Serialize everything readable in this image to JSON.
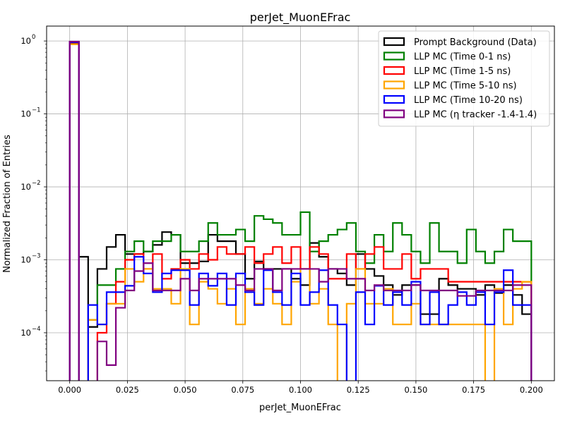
{
  "chart_data": {
    "type": "step-histogram",
    "title": "perJet_MuonEFrac",
    "xlabel": "perJet_MuonEFrac",
    "ylabel": "Normalized Fraction of Entries",
    "xlim": [
      -0.01,
      0.21
    ],
    "ylim": [
      2.2e-05,
      1.6
    ],
    "yscale": "log",
    "grid": true,
    "legend_position": "top-right",
    "x_ticks": [
      0.0,
      0.025,
      0.05,
      0.075,
      0.1,
      0.125,
      0.15,
      0.175,
      0.2
    ],
    "x_tick_labels": [
      "0.000",
      "0.025",
      "0.050",
      "0.075",
      "0.100",
      "0.125",
      "0.150",
      "0.175",
      "0.200"
    ],
    "y_ticks": [
      0.0001,
      0.001,
      0.01,
      0.1,
      1
    ],
    "y_tick_labels": [
      {
        "base": "10",
        "exp": "−4"
      },
      {
        "base": "10",
        "exp": "−3"
      },
      {
        "base": "10",
        "exp": "−2"
      },
      {
        "base": "10",
        "exp": "−1"
      },
      {
        "base": "10",
        "exp": "0"
      }
    ],
    "bins": {
      "start": 0.0,
      "width": 0.004,
      "count": 50
    },
    "series": [
      {
        "name": "Prompt Background (Data)",
        "color": "#000000",
        "values": [
          0.97,
          0.0011,
          0.00012,
          0.00075,
          0.0015,
          0.0022,
          0.0012,
          0.0012,
          0.0013,
          0.0016,
          0.0024,
          0.0022,
          0.0009,
          0.0009,
          0.00095,
          0.0022,
          0.0018,
          0.0018,
          0.0012,
          0.00055,
          0.00095,
          0.00075,
          0.00075,
          0.00075,
          0.00055,
          0.00045,
          0.0017,
          0.0011,
          0.00075,
          0.00065,
          0.00045,
          0.0012,
          0.00075,
          0.0006,
          0.00045,
          0.00033,
          0.00045,
          0.00045,
          0.00018,
          0.00018,
          0.00055,
          0.00045,
          0.0004,
          0.0004,
          0.00033,
          0.00045,
          0.00035,
          0.00045,
          0.00033,
          0.00018
        ]
      },
      {
        "name": "LLP MC (Time 0-1 ns)",
        "color": "#008000",
        "values": [
          0.93,
          0,
          0.00015,
          0.00045,
          0.00045,
          0.00075,
          0.0013,
          0.0018,
          0.0013,
          0.0018,
          0.0018,
          0.0022,
          0.0013,
          0.0013,
          0.0018,
          0.0032,
          0.0022,
          0.0022,
          0.0026,
          0.0018,
          0.004,
          0.0036,
          0.0032,
          0.0022,
          0.0022,
          0.0045,
          0.0013,
          0.0018,
          0.0022,
          0.0026,
          0.0032,
          0.0013,
          0.0009,
          0.0022,
          0.0013,
          0.0032,
          0.0022,
          0.0013,
          0.0009,
          0.0032,
          0.0013,
          0.0013,
          0.0009,
          0.0026,
          0.0013,
          0.0009,
          0.0013,
          0.0026,
          0.0018,
          0.0018
        ]
      },
      {
        "name": "LLP MC (Time 1-5 ns)",
        "color": "#ff0000",
        "values": [
          0.95,
          0,
          0,
          0.0001,
          0.00025,
          0.0005,
          0.001,
          0.0012,
          0.00075,
          0.0012,
          0.00055,
          0.00075,
          0.001,
          0.00075,
          0.0012,
          0.001,
          0.0015,
          0.0012,
          0.0012,
          0.0015,
          0.0009,
          0.0012,
          0.0015,
          0.0009,
          0.0015,
          0.00075,
          0.0015,
          0.0012,
          0.00055,
          0.00055,
          0.0012,
          0.00075,
          0.0012,
          0.0015,
          0.00075,
          0.00075,
          0.0012,
          0.00055,
          0.00075,
          0.00075,
          0.00075,
          0.0005,
          0.0005,
          0.0005,
          0.0005,
          0.0005,
          0.0005,
          0.0005,
          0.0005,
          0.0005
        ]
      },
      {
        "name": "LLP MC (Time 5-10 ns)",
        "color": "#ffa500",
        "values": [
          0.9,
          0,
          0.00015,
          0.00013,
          0.00025,
          0.00025,
          0.00075,
          0.0005,
          0.00075,
          0.0004,
          0.0004,
          0.00025,
          0.00075,
          0.00013,
          0.0005,
          0.0004,
          0.00025,
          0.0004,
          0.00013,
          0.0004,
          0.00025,
          0.0004,
          0.00025,
          0.00013,
          0.0005,
          0.00075,
          0.00025,
          0.0004,
          0.00013,
          0,
          0.00025,
          0.00075,
          0.00025,
          0.00025,
          0.0004,
          0.00013,
          0.00013,
          0.00025,
          0.00013,
          0.00013,
          0.00013,
          0.00013,
          0.00013,
          0.00013,
          0.00013,
          0,
          0.0004,
          0.00013,
          0.0004,
          0.0005
        ]
      },
      {
        "name": "LLP MC (Time 10-20 ns)",
        "color": "#0000ff",
        "values": [
          0.96,
          0,
          0.00024,
          0.00013,
          0.00036,
          0.00036,
          0.00044,
          0.0011,
          0.00065,
          0.00036,
          0.00065,
          0.00072,
          0.00072,
          0.00024,
          0.00065,
          0.00044,
          0.00065,
          0.00024,
          0.00065,
          0.00036,
          0.00024,
          0.00072,
          0.00036,
          0.00024,
          0.00065,
          0.00024,
          0.00036,
          0.00072,
          0.00024,
          0.00013,
          0,
          0.00036,
          0.00013,
          0.00044,
          0.00024,
          0.00036,
          0.00024,
          0.0005,
          0.00013,
          0.00036,
          0.00013,
          0.00024,
          0.00036,
          0.00024,
          0.00036,
          0.00013,
          0.00036,
          0.00072,
          0.00024,
          0.00024
        ]
      },
      {
        "name": "LLP MC (η tracker -1.4-1.4)",
        "color": "#800080",
        "values": [
          0.98,
          0,
          0,
          7.6e-05,
          3.6e-05,
          0.00022,
          0.00038,
          0.0007,
          0.0009,
          0.00038,
          0.00038,
          0.00038,
          0.00055,
          0.00038,
          0.00055,
          0.00055,
          0.00055,
          0.00055,
          0.00045,
          0.00038,
          0.00075,
          0.00075,
          0.00038,
          0.00075,
          0.00075,
          0.00075,
          0.00075,
          0.0005,
          0.00075,
          0.00075,
          0.00055,
          0.00055,
          0.00038,
          0.00045,
          0.00038,
          0.00038,
          0.00038,
          0.00045,
          0.00038,
          0.00038,
          0.00038,
          0.00038,
          0.00032,
          0.00032,
          0.00038,
          0.00038,
          0.00038,
          0.00038,
          0.00045,
          0.00045
        ]
      }
    ]
  }
}
